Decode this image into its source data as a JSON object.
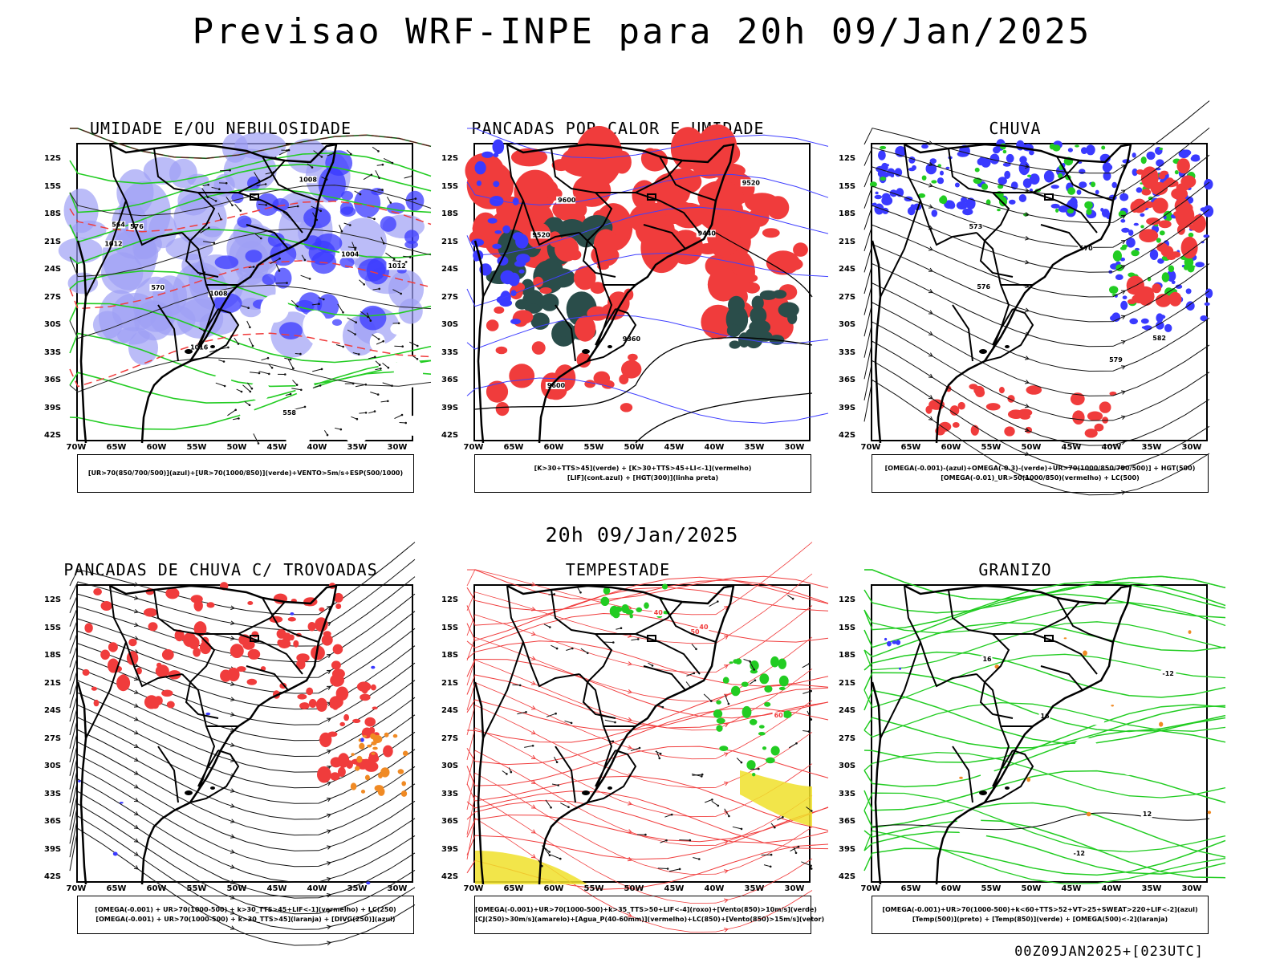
{
  "main_title": "Previsao WRF-INPE  para 20h 09/Jan/2025",
  "mid_title": "20h 09/Jan/2025",
  "footer": "00Z09JAN2025+[023UTC]",
  "latitudes": [
    "12S",
    "15S",
    "18S",
    "21S",
    "24S",
    "27S",
    "30S",
    "33S",
    "36S",
    "39S",
    "42S"
  ],
  "longitudes": [
    "70W",
    "65W",
    "60W",
    "55W",
    "50W",
    "45W",
    "40W",
    "35W",
    "30W"
  ],
  "colors": {
    "blue": "#3a3aff",
    "light_blue": "#9ea0f5",
    "green": "#22cc22",
    "red": "#f03c3c",
    "dark_teal": "#2a4d4a",
    "orange": "#f08a24",
    "yellow": "#f0e02a",
    "purple": "#c030c0"
  },
  "panels": [
    {
      "title": "UMIDADE E/OU NEBULOSIDADE",
      "legend": [
        "[UR>70(850/700/500)](azul)+[UR>70(1000/850)](verde)+VENTO>5m/s+ESP(500/1000)"
      ],
      "contour_labels": [
        "1008",
        "1012",
        "1016",
        "1004",
        "576",
        "570",
        "564",
        "558",
        "1012",
        "1008"
      ]
    },
    {
      "title": "PANCADAS POR CALOR E UMIDADE",
      "legend": [
        "[K>30+TTS>45](verde) + [K>30+TTS>45+LI<-1](vermelho)",
        "[LIF](cont.azul) + [HGT(300)](linha preta)"
      ],
      "contour_labels": [
        "9600",
        "9520",
        "9440",
        "9360",
        "9600",
        "9520"
      ]
    },
    {
      "title": "CHUVA",
      "legend": [
        "[OMEGA(-0.001)-(azul)+OMEGA(-0.3)-(verde)+UR>70(1000/850/700/500)] + HGT(500)",
        "[OMEGA(-0.01)_UR>50(1000/850)(vermelho) + LC(500)"
      ],
      "contour_labels": [
        "582",
        "579",
        "576",
        "573",
        "570"
      ]
    },
    {
      "title": "PANCADAS DE CHUVA C/ TROVOADAS",
      "legend": [
        "[OMEGA(-0.001) + UR>70(1000-500) + k>30_TTS>45+LIF<-1](vermelho) + LC(250)",
        "[OMEGA(-0.001) + UR>70(1000-500) + k>30_TTS>45](laranja) + [DIVG(250)](azul)"
      ],
      "contour_labels": []
    },
    {
      "title": "TEMPESTADE",
      "legend": [
        "[OMEGA(-0.001)+UR>70(1000-500)+k>35_TTS>50+LIF<-4](roxo)+[Vento(850)>10m/s](verde)",
        "[CJ(250)>30m/s](amarelo)+[Agua_P(40-60mm)](vermelho)+LC(850)+[Vento(850)>15m/s](vetor)"
      ],
      "contour_labels": [
        "40",
        "50",
        "60",
        "40"
      ]
    },
    {
      "title": "GRANIZO",
      "legend": [
        "[OMEGA(-0.001)+UR>70(1000-500)+k<60+TTS>52+VT>25+SWEAT>220+LIF<-2](azul)",
        "[Temp(500)](preto) + [Temp(850)](verde) + [OMEGA(500)<-2](laranja)"
      ],
      "contour_labels": [
        "-12",
        "-12",
        "16",
        "12",
        "16"
      ]
    }
  ]
}
